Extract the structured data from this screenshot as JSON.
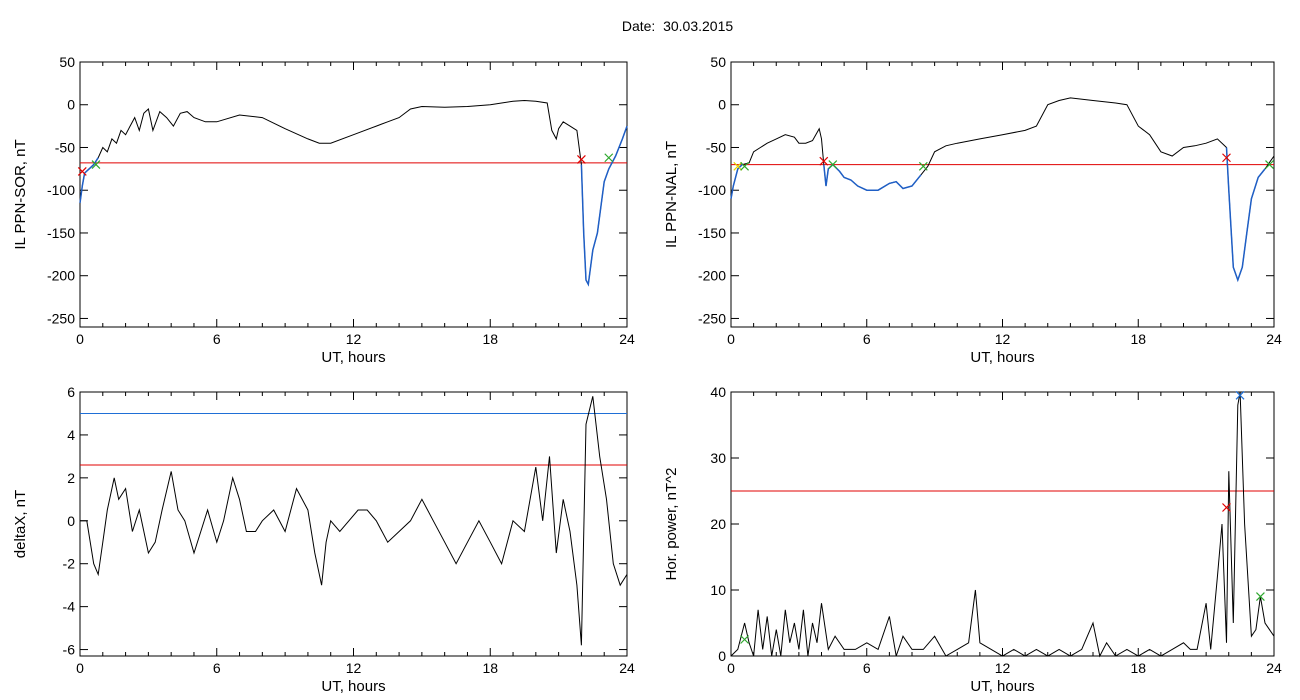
{
  "header": {
    "title": "Date:  30.03.2015"
  },
  "colors": {
    "axis": "#000000",
    "data": "#000000",
    "highlight": "#1f5fc6",
    "threshold_red": "#e00000",
    "threshold_blue": "#1f6fd6",
    "marker_red": "#e00000",
    "marker_green": "#2ea82e",
    "marker_blue": "#1f6fd6",
    "marker_yellow": "#e6d400"
  },
  "chart_data": [
    {
      "id": "ppn-sor",
      "type": "line",
      "xlabel": "UT, hours",
      "ylabel": "IL PPN-SOR, nT",
      "xlim": [
        0,
        24
      ],
      "ylim": [
        -260,
        50
      ],
      "xticks": [
        0,
        6,
        12,
        18,
        24
      ],
      "yticks": [
        50,
        0,
        -50,
        -100,
        -150,
        -200,
        -250
      ],
      "series": [
        {
          "x": [
            0,
            0.1,
            0.2,
            0.4,
            0.6,
            0.8,
            1.0,
            1.2,
            1.4,
            1.6,
            1.8,
            2.0,
            2.2,
            2.4,
            2.6,
            2.8,
            3.0,
            3.2,
            3.5,
            3.8,
            4.1,
            4.4,
            4.7,
            5.0,
            5.5,
            6,
            7,
            8,
            9,
            10,
            10.5,
            11,
            12,
            13,
            13.5,
            14,
            14.5,
            15,
            16,
            17,
            18,
            18.5,
            19,
            19.5,
            20,
            20.5,
            20.7,
            20.9,
            21,
            21.2,
            21.5,
            21.8,
            22,
            22.1,
            22.2,
            22.3,
            22.5,
            22.7,
            23,
            23.2,
            23.5,
            23.8,
            24
          ],
          "y": [
            -115,
            -95,
            -80,
            -75,
            -70,
            -62,
            -50,
            -55,
            -40,
            -45,
            -30,
            -35,
            -25,
            -15,
            -30,
            -10,
            -5,
            -30,
            -8,
            -15,
            -25,
            -10,
            -8,
            -15,
            -20,
            -20,
            -12,
            -15,
            -28,
            -40,
            -45,
            -45,
            -35,
            -25,
            -20,
            -15,
            -5,
            -2,
            -3,
            -2,
            0,
            2,
            4,
            5,
            4,
            2,
            -30,
            -40,
            -28,
            -20,
            -25,
            -30,
            -70,
            -150,
            -205,
            -210,
            -170,
            -150,
            -90,
            -75,
            -60,
            -40,
            -25
          ]
        }
      ],
      "hlines": [
        {
          "y": -68,
          "color": "#e00000"
        }
      ],
      "markers": [
        {
          "x": 0.1,
          "y": -78,
          "shape": "x",
          "color": "#e00000"
        },
        {
          "x": 0.7,
          "y": -70,
          "shape": "x",
          "color": "#2ea82e"
        },
        {
          "x": 22.0,
          "y": -64,
          "shape": "x",
          "color": "#e00000"
        },
        {
          "x": 23.2,
          "y": -62,
          "shape": "x",
          "color": "#2ea82e"
        }
      ],
      "highlight_segments": [
        [
          0,
          0.8
        ],
        [
          22.0,
          24
        ]
      ]
    },
    {
      "id": "ppn-nal",
      "type": "line",
      "xlabel": "UT, hours",
      "ylabel": "IL PPN-NAL, nT",
      "xlim": [
        0,
        24
      ],
      "ylim": [
        -260,
        50
      ],
      "xticks": [
        0,
        6,
        12,
        18,
        24
      ],
      "yticks": [
        50,
        0,
        -50,
        -100,
        -150,
        -200,
        -250
      ],
      "series": [
        {
          "x": [
            0,
            0.1,
            0.3,
            0.5,
            0.8,
            1.0,
            1.3,
            1.6,
            2.0,
            2.4,
            2.8,
            3.0,
            3.3,
            3.6,
            3.9,
            4.0,
            4.1,
            4.2,
            4.3,
            4.5,
            4.8,
            5.0,
            5.3,
            5.6,
            6.0,
            6.5,
            7.0,
            7.3,
            7.6,
            8.0,
            8.4,
            8.7,
            9.0,
            9.5,
            10,
            11,
            12,
            13,
            13.5,
            14,
            14.5,
            15,
            16,
            17,
            17.5,
            18,
            18.5,
            19,
            19.5,
            20,
            20.5,
            21,
            21.5,
            21.9,
            22.0,
            22.2,
            22.4,
            22.6,
            22.8,
            23.0,
            23.3,
            23.6,
            24
          ],
          "y": [
            -110,
            -95,
            -75,
            -70,
            -68,
            -55,
            -50,
            -45,
            -40,
            -35,
            -38,
            -45,
            -45,
            -42,
            -28,
            -40,
            -70,
            -95,
            -75,
            -70,
            -78,
            -85,
            -88,
            -95,
            -100,
            -100,
            -92,
            -90,
            -98,
            -95,
            -82,
            -72,
            -55,
            -48,
            -45,
            -40,
            -35,
            -30,
            -25,
            0,
            5,
            8,
            5,
            2,
            0,
            -25,
            -35,
            -55,
            -60,
            -50,
            -48,
            -45,
            -40,
            -50,
            -100,
            -190,
            -205,
            -190,
            -150,
            -110,
            -85,
            -75,
            -60
          ]
        }
      ],
      "hlines": [
        {
          "y": -70,
          "color": "#e00000"
        }
      ],
      "markers": [
        {
          "x": 0.3,
          "y": -72,
          "shape": "x",
          "color": "#e6d400"
        },
        {
          "x": 0.6,
          "y": -72,
          "shape": "x",
          "color": "#2ea82e"
        },
        {
          "x": 4.1,
          "y": -66,
          "shape": "x",
          "color": "#e00000"
        },
        {
          "x": 4.5,
          "y": -70,
          "shape": "x",
          "color": "#2ea82e"
        },
        {
          "x": 8.5,
          "y": -72,
          "shape": "x",
          "color": "#2ea82e"
        },
        {
          "x": 21.9,
          "y": -62,
          "shape": "x",
          "color": "#e00000"
        },
        {
          "x": 23.8,
          "y": -70,
          "shape": "x",
          "color": "#2ea82e"
        }
      ],
      "highlight_segments": [
        [
          0,
          0.6
        ],
        [
          4.1,
          8.5
        ],
        [
          21.9,
          23.8
        ]
      ]
    },
    {
      "id": "deltax",
      "type": "line",
      "xlabel": "UT, hours",
      "ylabel": "deltaX, nT",
      "xlim": [
        0,
        24
      ],
      "ylim": [
        -6.3,
        6
      ],
      "xticks": [
        0,
        6,
        12,
        18,
        24
      ],
      "yticks": [
        6,
        4,
        2,
        0,
        -2,
        -4,
        -6
      ],
      "series": [
        {
          "x": [
            0,
            0.3,
            0.6,
            0.8,
            1.0,
            1.2,
            1.5,
            1.7,
            2.0,
            2.3,
            2.6,
            3.0,
            3.3,
            3.6,
            4.0,
            4.3,
            4.6,
            5.0,
            5.3,
            5.6,
            6.0,
            6.3,
            6.7,
            7.0,
            7.3,
            7.7,
            8.0,
            8.5,
            9.0,
            9.5,
            10.0,
            10.3,
            10.6,
            10.8,
            11.0,
            11.4,
            11.8,
            12.2,
            12.6,
            13.0,
            13.5,
            14.0,
            14.5,
            15.0,
            15.5,
            16.0,
            16.5,
            17.0,
            17.5,
            18.0,
            18.5,
            19.0,
            19.5,
            20.0,
            20.3,
            20.6,
            20.9,
            21.2,
            21.5,
            21.8,
            22.0,
            22.2,
            22.5,
            22.8,
            23.1,
            23.4,
            23.7,
            24
          ],
          "y": [
            0,
            0,
            -2,
            -2.5,
            -1,
            0.5,
            2,
            1,
            1.5,
            -0.5,
            0.5,
            -1.5,
            -1,
            0.5,
            2.3,
            0.5,
            0,
            -1.5,
            -0.5,
            0.5,
            -1,
            0,
            2,
            1,
            -0.5,
            -0.5,
            0,
            0.5,
            -0.5,
            1.5,
            0.5,
            -1.5,
            -3,
            -1,
            0,
            -0.5,
            0,
            0.5,
            0.5,
            0,
            -1,
            -0.5,
            0,
            1,
            0,
            -1,
            -2,
            -1,
            0,
            -1,
            -2,
            0,
            -0.5,
            2.5,
            0,
            3,
            -1.5,
            1,
            -0.5,
            -3,
            -5.8,
            4.5,
            5.8,
            3,
            1,
            -2,
            -3,
            -2.5
          ]
        }
      ],
      "hlines": [
        {
          "y": 5.0,
          "color": "#1f6fd6"
        },
        {
          "y": 2.6,
          "color": "#e00000"
        }
      ],
      "markers": [],
      "highlight_segments": []
    },
    {
      "id": "hor-power",
      "type": "line",
      "xlabel": "UT, hours",
      "ylabel": "Hor. power, nT^2",
      "xlim": [
        0,
        24
      ],
      "ylim": [
        0,
        40
      ],
      "xticks": [
        0,
        6,
        12,
        18,
        24
      ],
      "yticks": [
        40,
        30,
        20,
        10,
        0
      ],
      "series": [
        {
          "x": [
            0,
            0.3,
            0.6,
            0.8,
            1.0,
            1.2,
            1.4,
            1.6,
            1.8,
            2.0,
            2.2,
            2.4,
            2.6,
            2.8,
            3.0,
            3.2,
            3.4,
            3.6,
            3.8,
            4.0,
            4.3,
            4.6,
            5.0,
            5.5,
            6.0,
            6.5,
            7.0,
            7.3,
            7.6,
            8.0,
            8.5,
            9.0,
            9.5,
            10.0,
            10.5,
            10.8,
            11.0,
            11.5,
            12.0,
            12.5,
            13.0,
            13.5,
            14.0,
            14.5,
            15.0,
            15.5,
            16.0,
            16.3,
            16.6,
            17.0,
            17.5,
            18.0,
            18.5,
            19.0,
            19.5,
            20.0,
            20.3,
            20.6,
            21.0,
            21.2,
            21.5,
            21.7,
            21.9,
            22.0,
            22.2,
            22.4,
            22.5,
            22.7,
            23.0,
            23.2,
            23.4,
            23.6,
            24
          ],
          "y": [
            0,
            1,
            5,
            2,
            0,
            7,
            1,
            6,
            0,
            4,
            0,
            7,
            2,
            5,
            1,
            7,
            0,
            5,
            2,
            8,
            1,
            3,
            1,
            1,
            2,
            1,
            6,
            0,
            3,
            1,
            1,
            3,
            0,
            1,
            2,
            10,
            2,
            1,
            0,
            1,
            0,
            1,
            0,
            1,
            0,
            1,
            5,
            0,
            2,
            0,
            1,
            0,
            1,
            0,
            1,
            2,
            1,
            1,
            8,
            1,
            12,
            20,
            2,
            28,
            5,
            38,
            40,
            20,
            3,
            4,
            9,
            5,
            3
          ]
        }
      ],
      "hlines": [
        {
          "y": 25,
          "color": "#e00000"
        }
      ],
      "markers": [
        {
          "x": 0.6,
          "y": 2.5,
          "shape": "x",
          "color": "#2ea82e"
        },
        {
          "x": 21.9,
          "y": 22.5,
          "shape": "x",
          "color": "#e00000"
        },
        {
          "x": 22.5,
          "y": 39.5,
          "shape": "x",
          "color": "#1f6fd6"
        },
        {
          "x": 23.4,
          "y": 9,
          "shape": "x",
          "color": "#2ea82e"
        }
      ],
      "highlight_segments": []
    }
  ]
}
